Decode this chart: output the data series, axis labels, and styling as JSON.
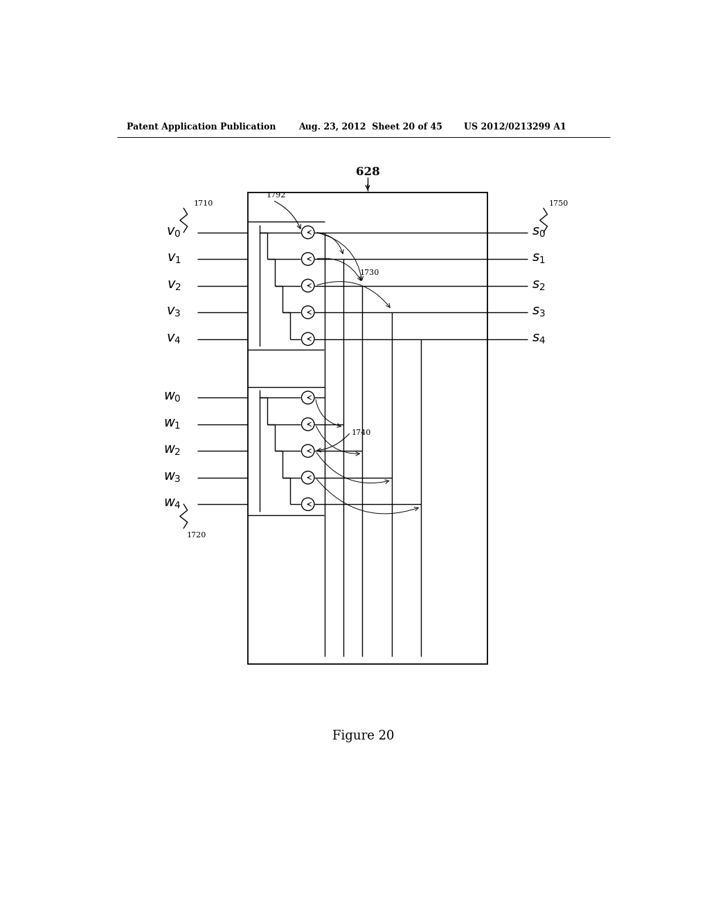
{
  "header_left": "Patent Application Publication",
  "header_mid": "Aug. 23, 2012  Sheet 20 of 45",
  "header_right": "US 2012/0213299 A1",
  "figure_label": "Figure 20",
  "bg_color": "#ffffff",
  "line_color": "#000000",
  "box_label": "628",
  "ref_1710": "1710",
  "ref_1720": "1720",
  "ref_1750": "1750",
  "ref_1792": "1792",
  "ref_1730": "1730",
  "ref_1740": "1740",
  "v_labels": [
    "v_0",
    "v_1",
    "v_2",
    "v_3",
    "v_4"
  ],
  "w_labels": [
    "w_0",
    "w_1",
    "w_2",
    "w_3",
    "w_4"
  ],
  "s_labels": [
    "s_0",
    "s_1",
    "s_2",
    "s_3",
    "s_4"
  ]
}
